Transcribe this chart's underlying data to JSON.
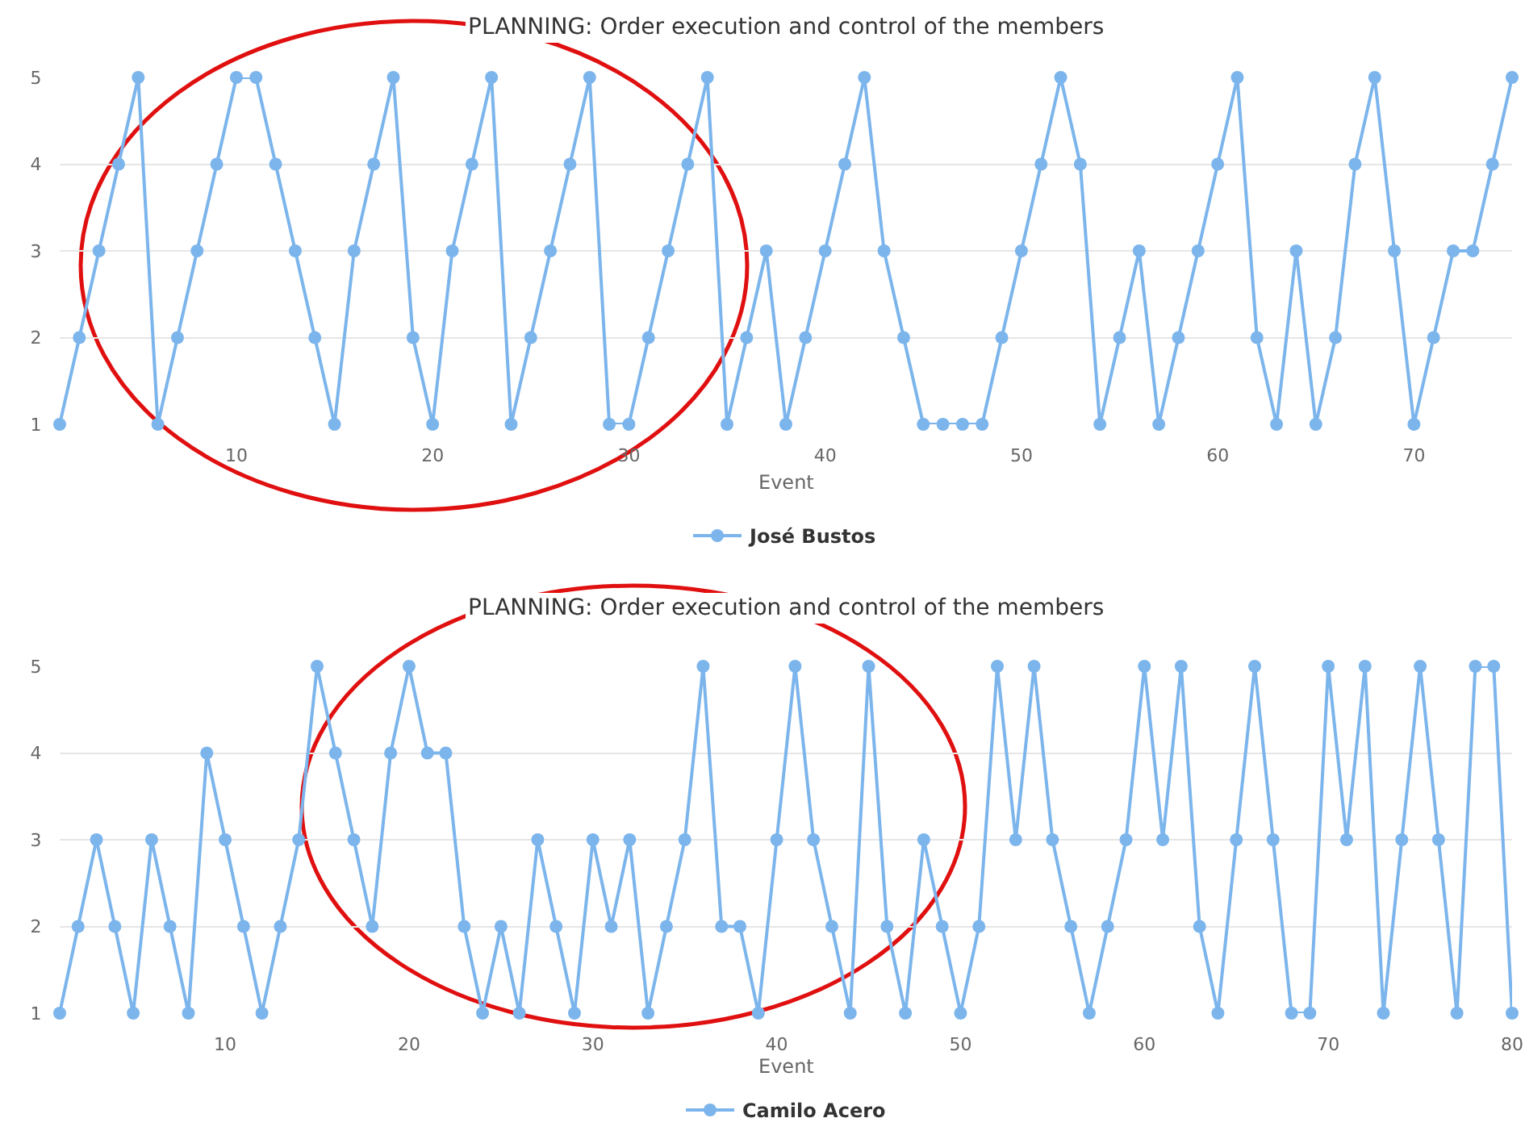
{
  "chart_data": [
    {
      "type": "line",
      "title": "PLANNING: Order execution and control of the members",
      "xlabel": "Event",
      "x": [
        1,
        2,
        3,
        4,
        5,
        6,
        7,
        8,
        9,
        10,
        11,
        12,
        13,
        14,
        15,
        16,
        17,
        18,
        19,
        20,
        21,
        22,
        23,
        24,
        25,
        26,
        27,
        28,
        29,
        30,
        31,
        32,
        33,
        34,
        35,
        36,
        37,
        38,
        39,
        40,
        41,
        42,
        43,
        44,
        45,
        46,
        47,
        48,
        49,
        50,
        51,
        52,
        53,
        54,
        55,
        56,
        57,
        58,
        59,
        60,
        61,
        62,
        63,
        64,
        65,
        66,
        67,
        68,
        69,
        70,
        71,
        72,
        73,
        74,
        75
      ],
      "series": [
        {
          "name": "José Bustos",
          "color": "#7cb5ec",
          "values": [
            1,
            2,
            3,
            4,
            5,
            1,
            2,
            3,
            4,
            5,
            5,
            4,
            3,
            2,
            1,
            3,
            4,
            5,
            2,
            1,
            3,
            4,
            5,
            1,
            2,
            3,
            4,
            5,
            1,
            1,
            2,
            3,
            4,
            5,
            1,
            2,
            3,
            1,
            2,
            3,
            4,
            5,
            3,
            2,
            1,
            1,
            1,
            1,
            2,
            3,
            4,
            5,
            4,
            1,
            2,
            3,
            1,
            2,
            3,
            4,
            5,
            2,
            1,
            3,
            1,
            2,
            4,
            5,
            3,
            1,
            2,
            3,
            3,
            4,
            5
          ]
        }
      ],
      "xlim": [
        1,
        75
      ],
      "xticks": [
        10,
        20,
        30,
        40,
        50,
        60,
        70
      ],
      "ylim": [
        1,
        5
      ],
      "yticks": [
        1,
        2,
        3,
        4,
        5
      ],
      "grid": "y",
      "legend": "bottom",
      "marker": "circle",
      "line_style": "solid"
    },
    {
      "type": "line",
      "title": "PLANNING: Order execution and control of the members",
      "xlabel": "Event",
      "x": [
        1,
        2,
        3,
        4,
        5,
        6,
        7,
        8,
        9,
        10,
        11,
        12,
        13,
        14,
        15,
        16,
        17,
        18,
        19,
        20,
        21,
        22,
        23,
        24,
        25,
        26,
        27,
        28,
        29,
        30,
        31,
        32,
        33,
        34,
        35,
        36,
        37,
        38,
        39,
        40,
        41,
        42,
        43,
        44,
        45,
        46,
        47,
        48,
        49,
        50,
        51,
        52,
        53,
        54,
        55,
        56,
        57,
        58,
        59,
        60,
        61,
        62,
        63,
        64,
        65,
        66,
        67,
        68,
        69,
        70,
        71,
        72,
        73,
        74,
        75,
        76,
        77,
        78,
        79,
        80
      ],
      "series": [
        {
          "name": "Camilo Acero",
          "color": "#7cb5ec",
          "values": [
            1,
            2,
            3,
            2,
            1,
            3,
            2,
            1,
            4,
            3,
            2,
            1,
            2,
            3,
            5,
            4,
            3,
            2,
            4,
            5,
            4,
            4,
            2,
            1,
            2,
            1,
            3,
            2,
            1,
            3,
            2,
            3,
            1,
            2,
            3,
            5,
            2,
            2,
            1,
            3,
            5,
            3,
            2,
            1,
            5,
            2,
            1,
            3,
            2,
            1,
            2,
            5,
            3,
            5,
            3,
            2,
            1,
            2,
            3,
            5,
            3,
            5,
            2,
            1,
            3,
            5,
            3,
            1,
            1,
            5,
            3,
            5,
            1,
            3,
            5,
            3,
            1,
            5,
            5,
            1
          ]
        }
      ],
      "xlim": [
        1,
        80
      ],
      "xticks": [
        10,
        20,
        30,
        40,
        50,
        60,
        70,
        80
      ],
      "ylim": [
        1,
        5
      ],
      "yticks": [
        1,
        2,
        3,
        4,
        5
      ],
      "grid": "y",
      "legend": "bottom",
      "marker": "circle",
      "line_style": "solid"
    }
  ]
}
